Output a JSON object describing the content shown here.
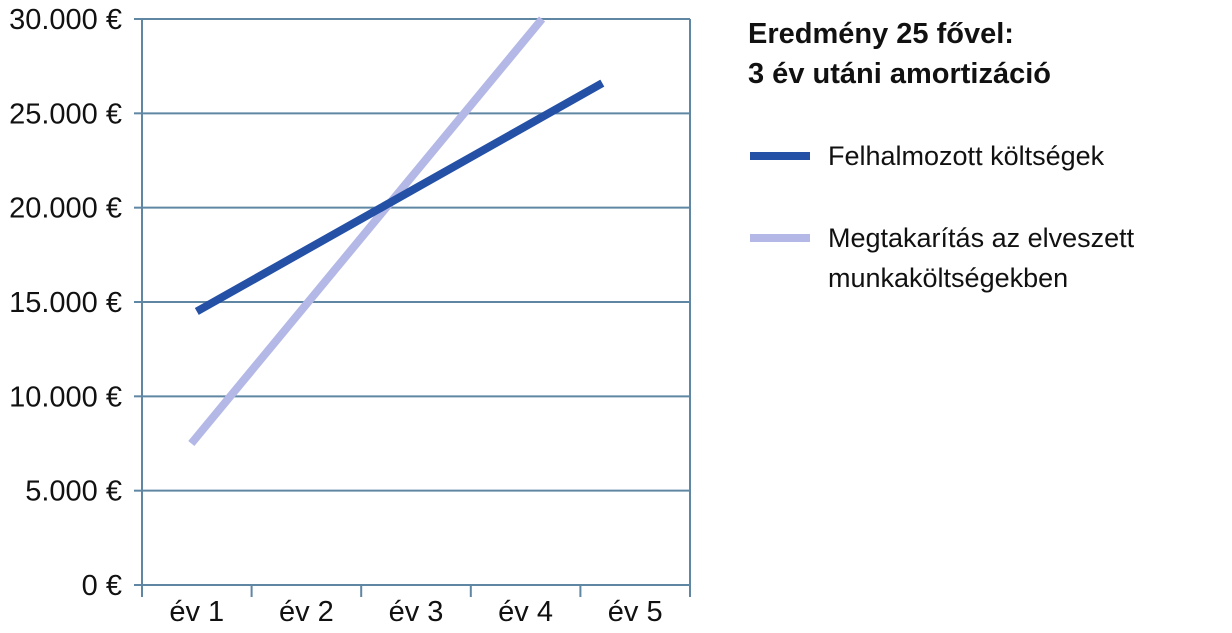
{
  "chart_data": {
    "type": "line",
    "title_lines": [
      "Eredmény 25 fővel:",
      "3 év utáni amortizáció"
    ],
    "categories": [
      "év 1",
      "év 2",
      "év 3",
      "év 4",
      "év 5"
    ],
    "ylim": [
      0,
      30000
    ],
    "yticks": [
      0,
      5000,
      10000,
      15000,
      20000,
      25000,
      30000
    ],
    "ytick_labels": [
      "0 €",
      "5.000 €",
      "10.000 €",
      "15.000 €",
      "20.000 €",
      "25.000 €",
      "30.000 €"
    ],
    "grid": true,
    "legend_position": "right",
    "series": [
      {
        "name": "Felhalmozott költségek",
        "label_lines": [
          "Felhalmozott költségek"
        ],
        "color": "#2450a6",
        "points": [
          [
            1.0,
            14500
          ],
          [
            4.7,
            26600
          ]
        ]
      },
      {
        "name": "Megtakarítás az elveszett munkaköltségekben",
        "label_lines": [
          "Megtakarítás az elveszett",
          "munkaköltségekben"
        ],
        "color": "#b3b8e6",
        "points": [
          [
            0.95,
            7500
          ],
          [
            4.15,
            30000
          ]
        ]
      }
    ],
    "colors": {
      "grid": "#5f86a3",
      "axis": "#5f86a3"
    }
  }
}
